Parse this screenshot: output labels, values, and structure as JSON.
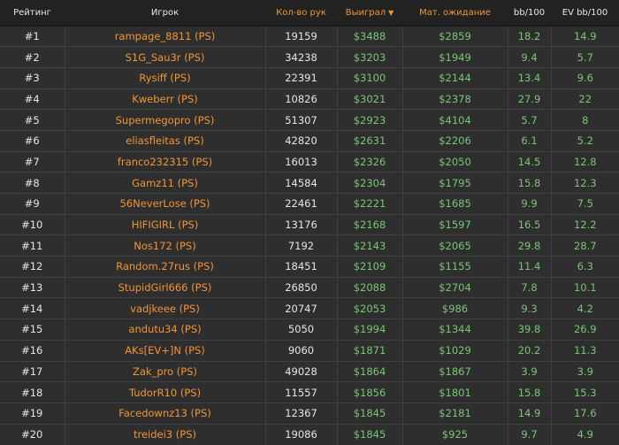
{
  "header": {
    "rank": "Рейтинг",
    "player": "Игрок",
    "hands": "Кол-во рук",
    "won": "Выиграл",
    "ev": "Мат. ожидание",
    "bb100": "bb/100",
    "evbb100": "EV bb/100",
    "sort_icon": "caret-down-icon"
  },
  "colors": {
    "accent": "#f0953a",
    "positive": "#7cc576",
    "text": "#e6e6e6",
    "row_bg": "#2e2e2e",
    "header_bg": "#222222"
  },
  "rows": [
    {
      "rank": "#1",
      "player": "rampage_8811 (PS)",
      "hands": "19159",
      "won": "$3488",
      "ev": "$2859",
      "bb100": "18.2",
      "evbb100": "14.9"
    },
    {
      "rank": "#2",
      "player": "S1G_Sau3r (PS)",
      "hands": "34238",
      "won": "$3203",
      "ev": "$1949",
      "bb100": "9.4",
      "evbb100": "5.7"
    },
    {
      "rank": "#3",
      "player": "Rysiff (PS)",
      "hands": "22391",
      "won": "$3100",
      "ev": "$2144",
      "bb100": "13.4",
      "evbb100": "9.6"
    },
    {
      "rank": "#4",
      "player": "Kweberr (PS)",
      "hands": "10826",
      "won": "$3021",
      "ev": "$2378",
      "bb100": "27.9",
      "evbb100": "22"
    },
    {
      "rank": "#5",
      "player": "Supermegopro (PS)",
      "hands": "51307",
      "won": "$2923",
      "ev": "$4104",
      "bb100": "5.7",
      "evbb100": "8"
    },
    {
      "rank": "#6",
      "player": "eliasfleitas (PS)",
      "hands": "42820",
      "won": "$2631",
      "ev": "$2206",
      "bb100": "6.1",
      "evbb100": "5.2"
    },
    {
      "rank": "#7",
      "player": "franco232315 (PS)",
      "hands": "16013",
      "won": "$2326",
      "ev": "$2050",
      "bb100": "14.5",
      "evbb100": "12.8"
    },
    {
      "rank": "#8",
      "player": "Gamz11 (PS)",
      "hands": "14584",
      "won": "$2304",
      "ev": "$1795",
      "bb100": "15.8",
      "evbb100": "12.3"
    },
    {
      "rank": "#9",
      "player": "56NeverLose (PS)",
      "hands": "22461",
      "won": "$2221",
      "ev": "$1685",
      "bb100": "9.9",
      "evbb100": "7.5"
    },
    {
      "rank": "#10",
      "player": "HIFIGIRL (PS)",
      "hands": "13176",
      "won": "$2168",
      "ev": "$1597",
      "bb100": "16.5",
      "evbb100": "12.2"
    },
    {
      "rank": "#11",
      "player": "Nos172 (PS)",
      "hands": "7192",
      "won": "$2143",
      "ev": "$2065",
      "bb100": "29.8",
      "evbb100": "28.7"
    },
    {
      "rank": "#12",
      "player": "Random.27rus (PS)",
      "hands": "18451",
      "won": "$2109",
      "ev": "$1155",
      "bb100": "11.4",
      "evbb100": "6.3"
    },
    {
      "rank": "#13",
      "player": "StupidGirl666 (PS)",
      "hands": "26850",
      "won": "$2088",
      "ev": "$2704",
      "bb100": "7.8",
      "evbb100": "10.1"
    },
    {
      "rank": "#14",
      "player": "vadjkeee (PS)",
      "hands": "20747",
      "won": "$2053",
      "ev": "$986",
      "bb100": "9.3",
      "evbb100": "4.2"
    },
    {
      "rank": "#15",
      "player": "andutu34 (PS)",
      "hands": "5050",
      "won": "$1994",
      "ev": "$1344",
      "bb100": "39.8",
      "evbb100": "26.9"
    },
    {
      "rank": "#16",
      "player": "AKs[EV+]N (PS)",
      "hands": "9060",
      "won": "$1871",
      "ev": "$1029",
      "bb100": "20.2",
      "evbb100": "11.3"
    },
    {
      "rank": "#17",
      "player": "Zak_pro (PS)",
      "hands": "49028",
      "won": "$1864",
      "ev": "$1867",
      "bb100": "3.9",
      "evbb100": "3.9"
    },
    {
      "rank": "#18",
      "player": "TudorR10 (PS)",
      "hands": "11557",
      "won": "$1856",
      "ev": "$1801",
      "bb100": "15.8",
      "evbb100": "15.3"
    },
    {
      "rank": "#19",
      "player": "Facedownz13 (PS)",
      "hands": "12367",
      "won": "$1845",
      "ev": "$2181",
      "bb100": "14.9",
      "evbb100": "17.6"
    },
    {
      "rank": "#20",
      "player": "treidei3 (PS)",
      "hands": "19086",
      "won": "$1845",
      "ev": "$925",
      "bb100": "9.7",
      "evbb100": "4.9"
    }
  ]
}
